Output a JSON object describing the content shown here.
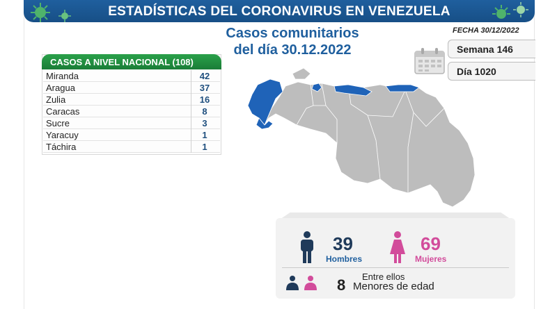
{
  "header": {
    "title": "ESTADÍSTICAS DEL CORONAVIRUS EN VENEZUELA"
  },
  "subtitle": {
    "line1": "Casos comunitarios",
    "line2": "del día 30.12.2022"
  },
  "fecha": "FECHA 30/12/2022",
  "semana": "Semana 146",
  "dia": "Día 1020",
  "table": {
    "header": "CASOS A NIVEL NACIONAL  (108)",
    "rows": [
      {
        "state": "Miranda",
        "cases": "42"
      },
      {
        "state": "Aragua",
        "cases": "37"
      },
      {
        "state": "Zulia",
        "cases": "16"
      },
      {
        "state": "Caracas",
        "cases": "8"
      },
      {
        "state": "Sucre",
        "cases": "3"
      },
      {
        "state": "Yaracuy",
        "cases": "1"
      },
      {
        "state": "Táchira",
        "cases": "1"
      }
    ]
  },
  "stats": {
    "hombres_count": "39",
    "hombres_label": "Hombres",
    "mujeres_count": "69",
    "mujeres_label": "Mujeres",
    "entre_ellos": "Entre ellos",
    "menores_count": "8",
    "menores_label": "Menores de edad"
  },
  "colors": {
    "brand_blue": "#1f5f9e",
    "table_green": "#1a7d37",
    "female_pink": "#d24c9b",
    "map_highlight": "#1f63b8",
    "map_base": "#bdbdbd"
  },
  "icons": [
    "virus-icon",
    "calendar-icon",
    "male-icon",
    "female-icon",
    "child-icon"
  ]
}
